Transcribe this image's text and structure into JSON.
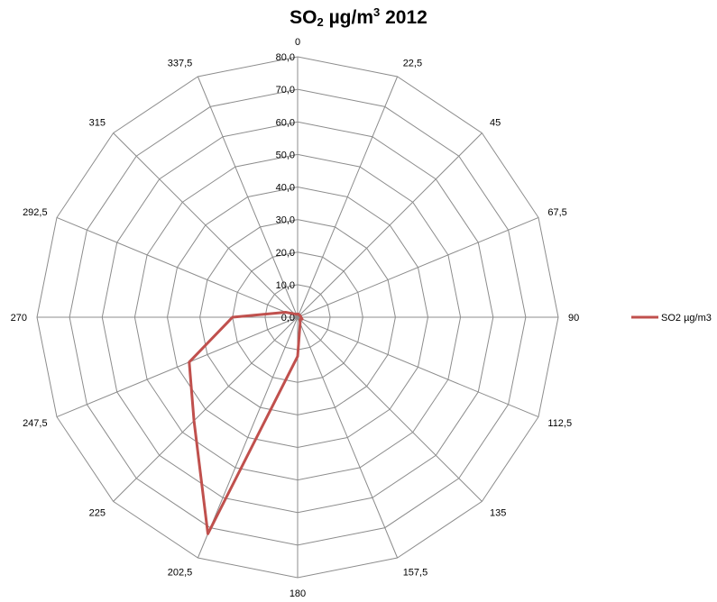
{
  "chart_data": {
    "type": "radar",
    "title": {
      "pre": "SO",
      "sub": "2",
      "mid": " µg/m",
      "sup": "3",
      "post": " 2012"
    },
    "categories": [
      "0",
      "22,5",
      "45",
      "67,5",
      "90",
      "112,5",
      "135",
      "157,5",
      "180",
      "202,5",
      "225",
      "247,5",
      "270",
      "292,5",
      "315",
      "337,5"
    ],
    "r_ticks": [
      "0,0",
      "10,0",
      "20,0",
      "30,0",
      "40,0",
      "50,0",
      "60,0",
      "70,0",
      "80,0"
    ],
    "rlim": [
      0,
      80
    ],
    "grid": true,
    "legend_position": "right",
    "series": [
      {
        "name": "SO2 µg/m3",
        "color": "#c0504d",
        "values": [
          1,
          1,
          0.8,
          1,
          1,
          1.5,
          1,
          2,
          12,
          72,
          45,
          36,
          20,
          4,
          1.5,
          1
        ]
      }
    ]
  }
}
